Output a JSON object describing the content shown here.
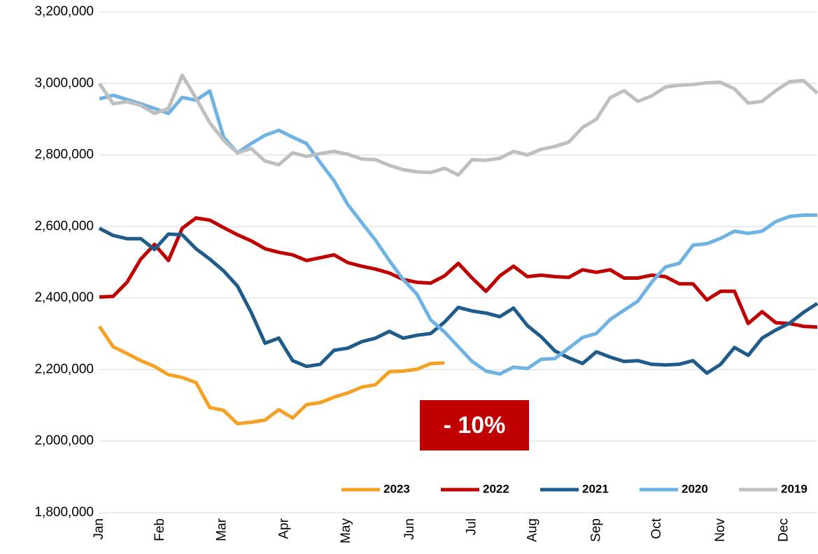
{
  "chart_data": {
    "type": "line",
    "annotation": "- 10%",
    "annotation_color": "#c00000",
    "x": [
      0,
      1,
      2,
      3,
      4,
      5,
      6,
      7,
      8,
      9,
      10,
      11,
      12,
      13,
      14,
      15,
      16,
      17,
      18,
      19,
      20,
      21,
      22,
      23,
      24,
      25,
      26,
      27,
      28,
      29,
      30,
      31,
      32,
      33,
      34,
      35,
      36,
      37,
      38,
      39,
      40,
      41,
      42,
      43,
      44,
      45,
      46,
      47,
      48,
      49,
      50,
      51,
      52
    ],
    "xlim": [
      0,
      52
    ],
    "xticks": [
      {
        "value": 0,
        "label": "Jan"
      },
      {
        "value": 4.4,
        "label": "Feb"
      },
      {
        "value": 8.9,
        "label": "Mar"
      },
      {
        "value": 13.4,
        "label": "Apr"
      },
      {
        "value": 17.9,
        "label": "May"
      },
      {
        "value": 22.5,
        "label": "Jun"
      },
      {
        "value": 27,
        "label": "Jul"
      },
      {
        "value": 31.4,
        "label": "Aug"
      },
      {
        "value": 36,
        "label": "Sep"
      },
      {
        "value": 40.4,
        "label": "Oct"
      },
      {
        "value": 45,
        "label": "Nov"
      },
      {
        "value": 49.6,
        "label": "Dec"
      }
    ],
    "ylim": [
      1800000,
      3200000
    ],
    "yticks": [
      {
        "value": 1800000,
        "label": "1,800,000"
      },
      {
        "value": 2000000,
        "label": "2,000,000"
      },
      {
        "value": 2200000,
        "label": "2,200,000"
      },
      {
        "value": 2400000,
        "label": "2,400,000"
      },
      {
        "value": 2600000,
        "label": "2,600,000"
      },
      {
        "value": 2800000,
        "label": "2,800,000"
      },
      {
        "value": 3000000,
        "label": "3,000,000"
      },
      {
        "value": 3200000,
        "label": "3,200,000"
      }
    ],
    "grid": true,
    "legend": "bottom-right",
    "series": [
      {
        "name": "2023",
        "color": "#f5a126",
        "values": [
          2321000,
          2264000,
          2245000,
          2225000,
          2209000,
          2186000,
          2178000,
          2164000,
          2094000,
          2086000,
          2049000,
          2053000,
          2059000,
          2088000,
          2065000,
          2102000,
          2108000,
          2123000,
          2135000,
          2151000,
          2158000,
          2194000,
          2196000,
          2201000,
          2217000,
          2219000,
          null,
          null,
          null,
          null,
          null,
          null,
          null,
          null,
          null,
          null,
          null,
          null,
          null,
          null,
          null,
          null,
          null,
          null,
          null,
          null,
          null,
          null,
          null,
          null,
          null,
          null,
          null
        ]
      },
      {
        "name": "2022",
        "color": "#c00000",
        "values": [
          2403000,
          2405000,
          2444000,
          2509000,
          2550000,
          2505000,
          2595000,
          2624000,
          2618000,
          2597000,
          2577000,
          2560000,
          2538000,
          2528000,
          2521000,
          2505000,
          2513000,
          2521000,
          2499000,
          2489000,
          2481000,
          2470000,
          2452000,
          2444000,
          2442000,
          2462000,
          2497000,
          2456000,
          2419000,
          2462000,
          2489000,
          2460000,
          2464000,
          2460000,
          2458000,
          2479000,
          2472000,
          2479000,
          2456000,
          2456000,
          2464000,
          2460000,
          2440000,
          2440000,
          2395000,
          2419000,
          2419000,
          2329000,
          2362000,
          2331000,
          2329000,
          2321000,
          2319000
        ]
      },
      {
        "name": "2021",
        "color": "#1f5c8b",
        "values": [
          2595000,
          2575000,
          2566000,
          2566000,
          2536000,
          2579000,
          2577000,
          2538000,
          2509000,
          2476000,
          2434000,
          2360000,
          2274000,
          2288000,
          2225000,
          2209000,
          2215000,
          2254000,
          2260000,
          2278000,
          2288000,
          2307000,
          2288000,
          2296000,
          2301000,
          2333000,
          2374000,
          2364000,
          2358000,
          2348000,
          2372000,
          2323000,
          2292000,
          2252000,
          2233000,
          2217000,
          2250000,
          2235000,
          2223000,
          2225000,
          2215000,
          2213000,
          2215000,
          2225000,
          2190000,
          2215000,
          2262000,
          2240000,
          2288000,
          2311000,
          2330000,
          2360000,
          2385000
        ]
      },
      {
        "name": "2020",
        "color": "#6fb3e4",
        "values": [
          2957000,
          2967000,
          2955000,
          2943000,
          2930000,
          2916000,
          2961000,
          2953000,
          2979000,
          2850000,
          2806000,
          2832000,
          2855000,
          2869000,
          2850000,
          2832000,
          2779000,
          2728000,
          2661000,
          2611000,
          2562000,
          2505000,
          2452000,
          2411000,
          2339000,
          2305000,
          2264000,
          2223000,
          2196000,
          2188000,
          2207000,
          2203000,
          2229000,
          2231000,
          2260000,
          2290000,
          2301000,
          2340000,
          2366000,
          2391000,
          2444000,
          2487000,
          2497000,
          2548000,
          2552000,
          2567000,
          2587000,
          2581000,
          2587000,
          2614000,
          2628000,
          2632000,
          2632000
        ]
      },
      {
        "name": "2019",
        "color": "#bfbfbf",
        "values": [
          3000000,
          2943000,
          2949000,
          2939000,
          2916000,
          2930000,
          3023000,
          2959000,
          2890000,
          2841000,
          2806000,
          2818000,
          2783000,
          2773000,
          2806000,
          2796000,
          2804000,
          2810000,
          2802000,
          2789000,
          2787000,
          2771000,
          2759000,
          2753000,
          2751000,
          2763000,
          2744000,
          2787000,
          2785000,
          2791000,
          2810000,
          2800000,
          2816000,
          2824000,
          2836000,
          2877000,
          2900000,
          2960000,
          2980000,
          2950000,
          2965000,
          2990000,
          2995000,
          2997000,
          3002000,
          3003000,
          2985000,
          2945000,
          2950000,
          2980000,
          3005000,
          3008000,
          2973000
        ]
      }
    ]
  }
}
